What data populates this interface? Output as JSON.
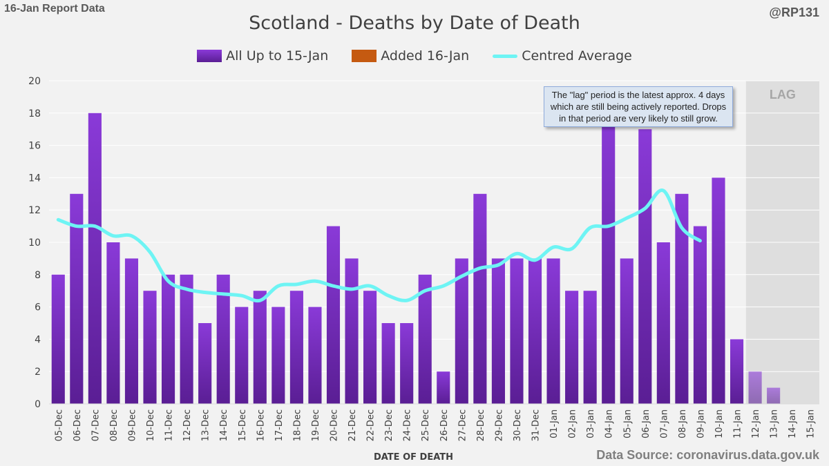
{
  "header": {
    "report_label": "16-Jan Report Data",
    "handle": "@RP131",
    "source": "Data Source: coronavirus.data.gov.uk"
  },
  "annotation": "The \"lag\" period is the latest approx. 4 days which are still being actively reported. Drops in that period are very likely to still grow.",
  "colors": {
    "bar_top": "#8a3ad8",
    "bar_bottom": "#5a1e94",
    "added": "#c55a11",
    "line": "#6ef4f4",
    "lag_bg": "#dedede",
    "grid": "#ffffff"
  },
  "chart_data": {
    "type": "bar",
    "title": "Scotland - Deaths by Date of Death",
    "xlabel": "DATE OF DEATH",
    "ylabel": "",
    "ylim": [
      0,
      20
    ],
    "yticks": [
      0,
      2,
      4,
      6,
      8,
      10,
      12,
      14,
      16,
      18,
      20
    ],
    "grid": true,
    "legend_position": "top",
    "lag_label": "LAG",
    "lag_categories": [
      "12-Jan",
      "13-Jan",
      "14-Jan",
      "15-Jan"
    ],
    "categories": [
      "05-Dec",
      "06-Dec",
      "07-Dec",
      "08-Dec",
      "09-Dec",
      "10-Dec",
      "11-Dec",
      "12-Dec",
      "13-Dec",
      "14-Dec",
      "15-Dec",
      "16-Dec",
      "17-Dec",
      "18-Dec",
      "19-Dec",
      "20-Dec",
      "21-Dec",
      "22-Dec",
      "23-Dec",
      "24-Dec",
      "25-Dec",
      "26-Dec",
      "27-Dec",
      "28-Dec",
      "29-Dec",
      "30-Dec",
      "31-Dec",
      "01-Jan",
      "02-Jan",
      "03-Jan",
      "04-Jan",
      "05-Jan",
      "06-Jan",
      "07-Jan",
      "08-Jan",
      "09-Jan",
      "10-Jan",
      "11-Jan",
      "12-Jan",
      "13-Jan",
      "14-Jan",
      "15-Jan"
    ],
    "series": [
      {
        "name": "All Up to 15-Jan",
        "kind": "bar",
        "values": [
          8,
          13,
          18,
          10,
          9,
          7,
          8,
          8,
          5,
          8,
          6,
          7,
          6,
          7,
          6,
          11,
          9,
          7,
          5,
          5,
          8,
          2,
          9,
          13,
          9,
          9,
          9,
          9,
          7,
          7,
          18,
          9,
          17,
          10,
          13,
          11,
          14,
          4,
          2,
          1,
          0,
          0
        ]
      },
      {
        "name": "Added 16-Jan",
        "kind": "bar-stacked",
        "values": [
          0,
          0,
          0,
          0,
          0,
          0,
          0,
          0,
          0,
          0,
          0,
          0,
          0,
          0,
          0,
          0,
          0,
          0,
          0,
          0,
          0,
          0,
          0,
          0,
          0,
          0,
          0,
          0,
          0,
          0,
          0,
          0,
          0,
          0,
          0,
          0,
          0,
          0,
          0,
          0,
          0,
          0
        ]
      },
      {
        "name": "Centred Average",
        "kind": "line",
        "values": [
          11.4,
          11.0,
          11.0,
          10.4,
          10.4,
          9.4,
          7.6,
          7.1,
          6.9,
          6.8,
          6.7,
          6.4,
          7.3,
          7.4,
          7.6,
          7.3,
          7.1,
          7.3,
          6.7,
          6.4,
          7.0,
          7.3,
          7.9,
          8.4,
          8.6,
          9.3,
          8.9,
          9.7,
          9.6,
          10.9,
          11.0,
          11.5,
          12.1,
          13.2,
          10.9,
          10.1,
          null,
          null,
          null,
          null,
          null,
          null
        ]
      }
    ]
  }
}
